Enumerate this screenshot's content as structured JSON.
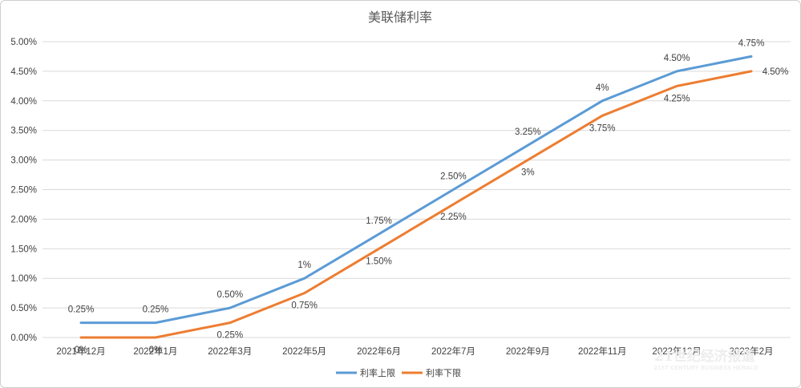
{
  "chart_data": {
    "type": "line",
    "title": "美联储利率",
    "categories": [
      "2021年12月",
      "2022年1月",
      "2022年3月",
      "2022年5月",
      "2022年6月",
      "2022年7月",
      "2022年9月",
      "2022年11月",
      "2022年12月",
      "2023年2月"
    ],
    "yticks": [
      "0.00%",
      "0.50%",
      "1.00%",
      "1.50%",
      "2.00%",
      "2.50%",
      "3.00%",
      "3.50%",
      "4.00%",
      "4.50%",
      "5.00%"
    ],
    "ylim": [
      0,
      5
    ],
    "grid": true,
    "legend_position": "bottom",
    "series": [
      {
        "name": "利率上限",
        "color": "#5b9bd5",
        "values": [
          0.25,
          0.25,
          0.5,
          1.0,
          1.75,
          2.5,
          3.25,
          4.0,
          4.5,
          4.75
        ],
        "labels": [
          "0.25%",
          "0.25%",
          "0.50%",
          "1%",
          "1.75%",
          "2.50%",
          "3.25%",
          "4%",
          "4.50%",
          "4.75%"
        ]
      },
      {
        "name": "利率下限",
        "color": "#ed7d31",
        "values": [
          0,
          0,
          0.25,
          0.75,
          1.5,
          2.25,
          3.0,
          3.75,
          4.25,
          4.5
        ],
        "labels": [
          "0%",
          "0%",
          "0.25%",
          "0.75%",
          "1.50%",
          "2.25%",
          "3%",
          "3.75%",
          "4.25%",
          "4.50%"
        ]
      }
    ]
  },
  "watermark": {
    "main": "21世纪经济报道",
    "sub": "21ST CENTURY BUSINESS HERALD"
  }
}
